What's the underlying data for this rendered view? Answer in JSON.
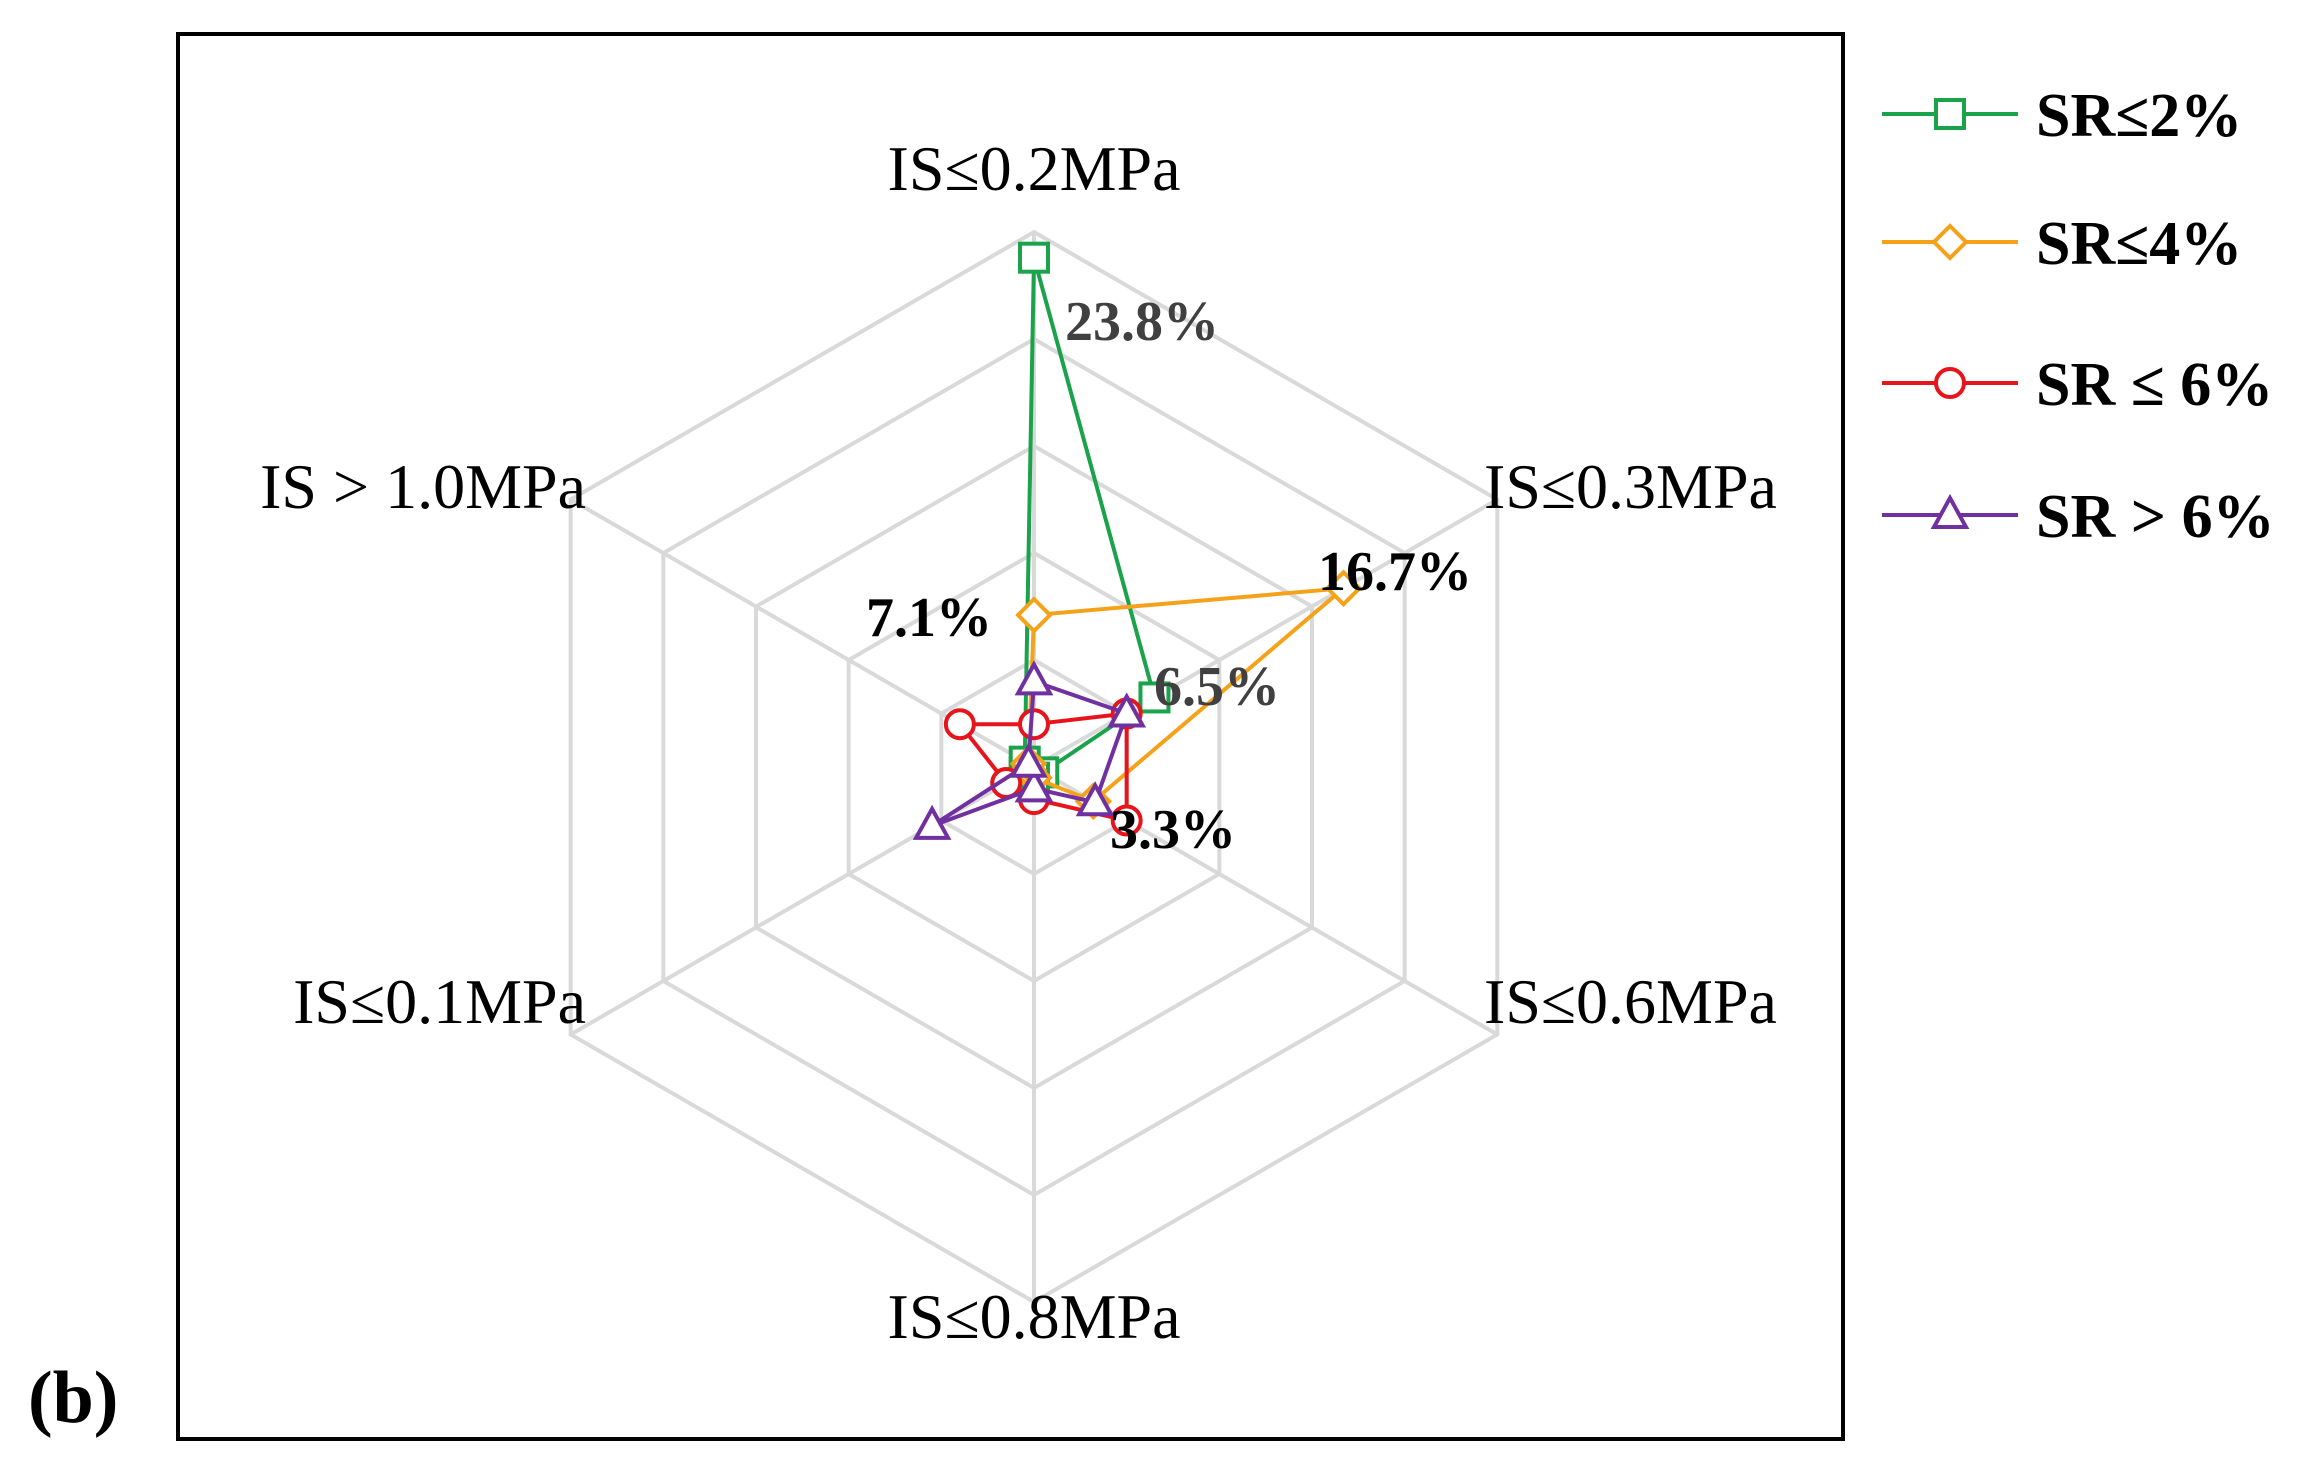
{
  "panel_label": "(b)",
  "chart_data": {
    "type": "radar",
    "axes": [
      "IS≤0.2MPa",
      "IS≤0.3MPa",
      "IS≤0.6MPa",
      "IS≤0.8MPa",
      "IS≤0.1MPa",
      "IS > 1.0MPa"
    ],
    "grid": true,
    "grid_levels": 5,
    "legend_position": "top-right",
    "series": [
      {
        "name": "SR≤2%",
        "color": "#1aa34a",
        "marker": "square",
        "values": [
          23.8,
          6.5,
          0.5,
          0.5,
          0.5,
          0.5
        ]
      },
      {
        "name": "SR≤4%",
        "color": "#f5a21b",
        "marker": "diamond",
        "values": [
          7.1,
          16.7,
          3.2,
          0.5,
          0.3,
          0.3
        ]
      },
      {
        "name": "SR ≤ 6%",
        "color": "#e8141b",
        "marker": "circle",
        "values": [
          2.0,
          5.0,
          5.0,
          1.5,
          1.5,
          4.0
        ]
      },
      {
        "name": "SR > 6%",
        "color": "#7030a0",
        "marker": "triangle",
        "values": [
          4.0,
          5.0,
          3.3,
          1.0,
          5.5,
          0.3
        ]
      }
    ],
    "annotations": [
      {
        "text": "23.8%",
        "color": "#404040"
      },
      {
        "text": "16.7%",
        "color": "#000000"
      },
      {
        "text": "6.5%",
        "color": "#404040"
      },
      {
        "text": "3.3%",
        "color": "#000000"
      },
      {
        "text": "7.1%",
        "color": "#000000"
      }
    ]
  }
}
